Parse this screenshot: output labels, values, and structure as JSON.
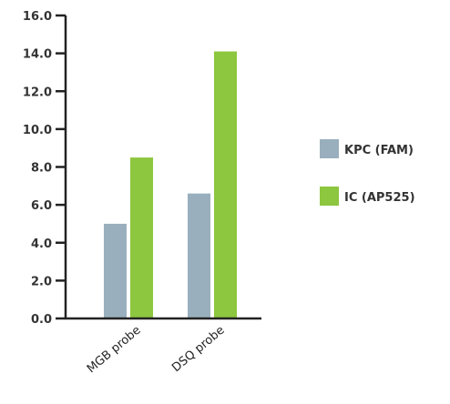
{
  "chart_data": {
    "type": "bar",
    "categories": [
      "MGB probe",
      "DSQ probe"
    ],
    "series": [
      {
        "name": "KPC (FAM)",
        "color": "#9aafbd",
        "values": [
          5.0,
          6.6
        ]
      },
      {
        "name": "IC (AP525)",
        "color": "#8dc63f",
        "values": [
          8.5,
          14.1
        ]
      }
    ],
    "title": "",
    "xlabel": "",
    "ylabel": "",
    "ylim": [
      0,
      16
    ],
    "yticks": [
      "0.0",
      "2.0",
      "4.0",
      "6.0",
      "8.0",
      "10.0",
      "12.0",
      "14.0",
      "16.0"
    ],
    "grid": false,
    "legend_position": "right"
  }
}
